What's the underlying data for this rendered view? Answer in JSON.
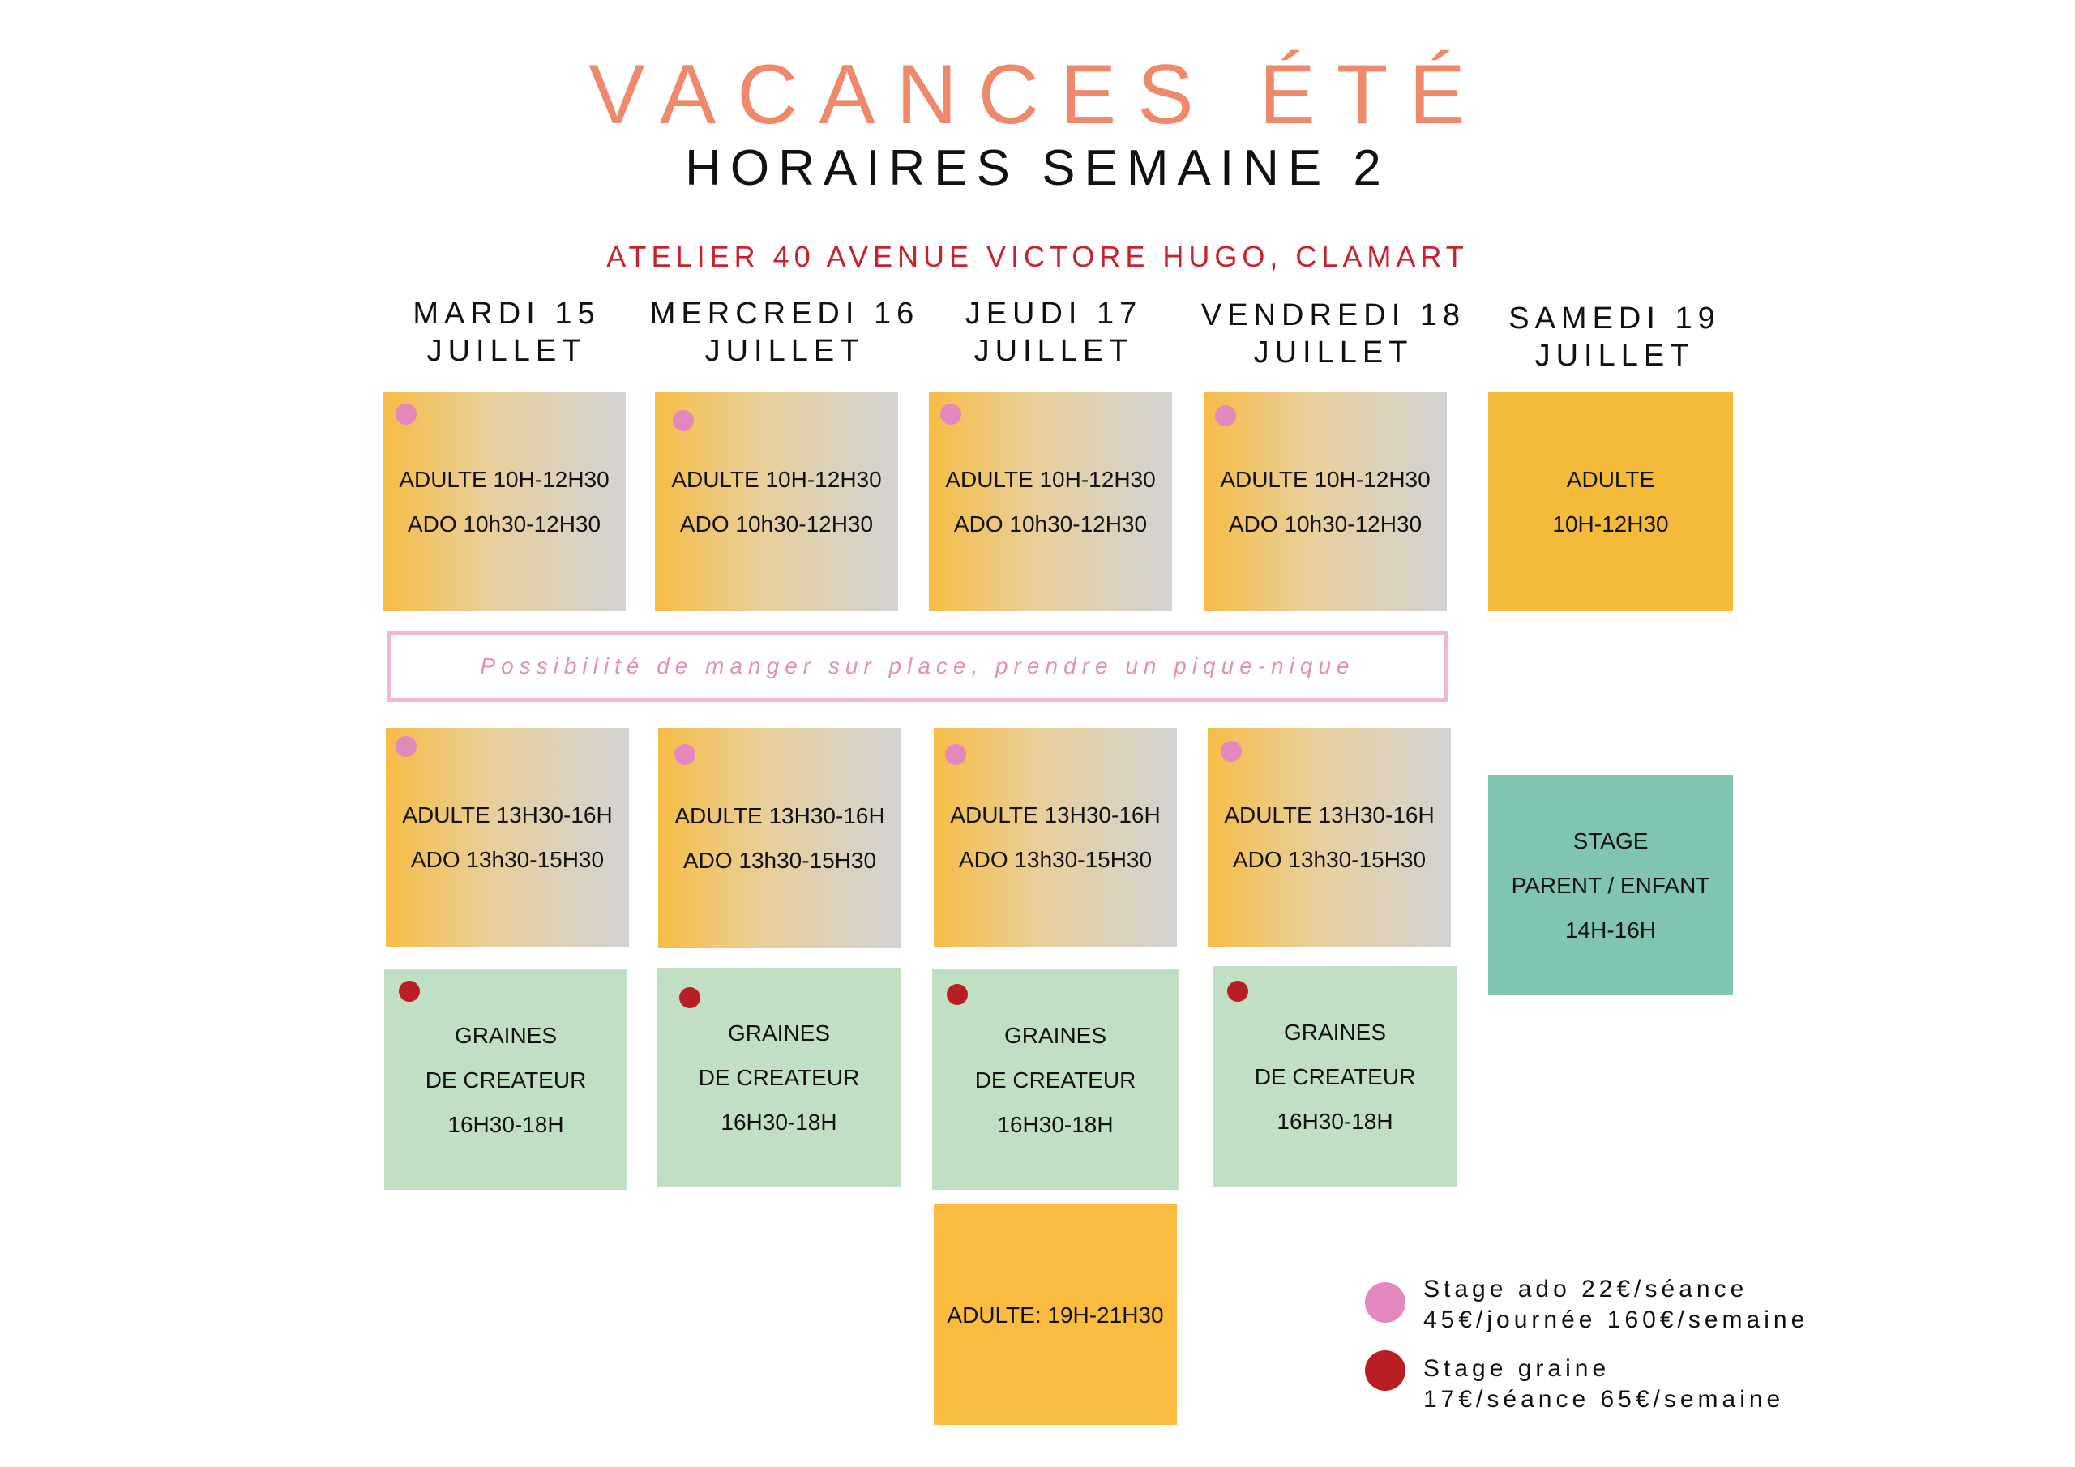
{
  "header": {
    "title": "VACANCES ÉTÉ",
    "subtitle": "HORAIRES SEMAINE 2",
    "address": "ATELIER 40 AVENUE VICTORE HUGO, CLAMART"
  },
  "days": [
    {
      "line1": "MARDI 15",
      "line2": "JUILLET"
    },
    {
      "line1": "MERCREDI 16",
      "line2": "JUILLET"
    },
    {
      "line1": "JEUDI 17",
      "line2": "JUILLET"
    },
    {
      "line1": "VENDREDI 18",
      "line2": "JUILLET"
    },
    {
      "line1": "SAMEDI 19",
      "line2": "JUILLET"
    }
  ],
  "morning": {
    "weekday": {
      "line1": "ADULTE 10H-12H30",
      "line2": "ADO 10h30-12H30"
    },
    "saturday": {
      "line1": "ADULTE",
      "line2": "10H-12H30"
    }
  },
  "banner": "Possibilité de manger sur place, prendre un pique-nique",
  "afternoon": {
    "weekday": {
      "line1": "ADULTE 13H30-16H",
      "line2": "ADO 13h30-15H30"
    },
    "saturday": {
      "line1": "STAGE",
      "line2": "PARENT / ENFANT",
      "line3": "14H-16H"
    }
  },
  "graines": {
    "line1": "GRAINES",
    "line2": "DE CREATEUR",
    "line3": "16H30-18H"
  },
  "evening": {
    "label": "ADULTE: 19H-21H30"
  },
  "legend": {
    "ado": {
      "line1": "Stage ado 22€/séance",
      "line2": "45€/journée  160€/semaine",
      "color": "#e487bd"
    },
    "graine": {
      "line1": "Stage graine",
      "line2": "17€/séance 65€/semaine",
      "color": "#b71f24"
    }
  }
}
